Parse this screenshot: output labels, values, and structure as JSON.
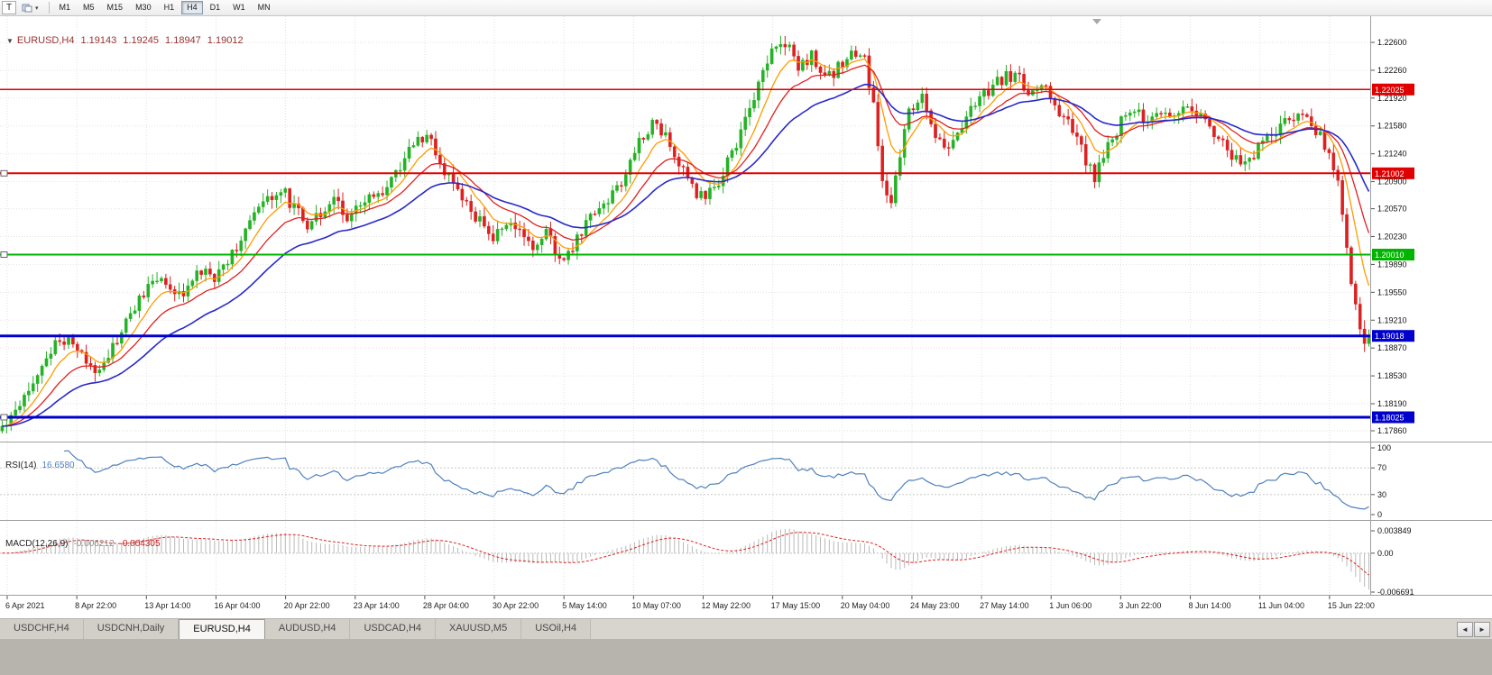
{
  "icons": {
    "caret_down": "▾",
    "legend_marker": "▼"
  },
  "toolbar": {
    "t_button_label": "T",
    "timeframes": [
      "M1",
      "M5",
      "M15",
      "M30",
      "H1",
      "H4",
      "D1",
      "W1",
      "MN"
    ],
    "active_timeframe": "H4"
  },
  "chart_header": {
    "symbol": "EURUSD,H4",
    "open": "1.19143",
    "high": "1.19245",
    "low": "1.18947",
    "close": "1.19012"
  },
  "rsi_panel": {
    "label": "RSI(14)",
    "value": "16.6580"
  },
  "macd_panel": {
    "label": "MACD(12,26,9)",
    "value_main": "-0.006212",
    "value_signal": "-0.004305"
  },
  "tabbar": {
    "tabs": [
      "USDCHF,H4",
      "USDCNH,Daily",
      "EURUSD,H4",
      "AUDUSD,H4",
      "USDCAD,H4",
      "XAUUSD,M5",
      "USOil,H4"
    ],
    "active": "EURUSD,H4",
    "scroll_left": "◄",
    "scroll_right": "►"
  },
  "chart_data": {
    "type": "candlestick",
    "symbol": "EURUSD",
    "timeframe": "H4",
    "last_ohlc": {
      "open": 1.19143,
      "high": 1.19245,
      "low": 1.18947,
      "close": 1.19012
    },
    "axis_range": [
      1.1771,
      1.2289
    ],
    "price_ticks": [
      "1.22600",
      "1.22260",
      "1.21920",
      "1.21580",
      "1.21240",
      "1.20900",
      "1.20570",
      "1.20230",
      "1.19890",
      "1.19550",
      "1.19210",
      "1.18870",
      "1.18530",
      "1.18190",
      "1.17860"
    ],
    "time_labels": [
      "6 Apr 2021",
      "8 Apr 22:00",
      "13 Apr 14:00",
      "16 Apr 04:00",
      "20 Apr 22:00",
      "23 Apr 14:00",
      "28 Apr 04:00",
      "30 Apr 22:00",
      "5 May 14:00",
      "10 May 07:00",
      "12 May 22:00",
      "17 May 15:00",
      "20 May 04:00",
      "24 May 23:00",
      "27 May 14:00",
      "1 Jun 06:00",
      "3 Jun 22:00",
      "8 Jun 14:00",
      "11 Jun 04:00",
      "15 Jun 22:00"
    ],
    "hlines": [
      {
        "value": 1.22025,
        "label": "1.22025",
        "color": "#e00000",
        "width": 1.5,
        "marker": false
      },
      {
        "value": 1.21002,
        "label": "1.21002",
        "color": "#e00000",
        "width": 2,
        "marker": true
      },
      {
        "value": 1.2001,
        "label": "1.20010",
        "color": "#00b400",
        "width": 2,
        "marker": true
      },
      {
        "value": 1.19018,
        "label": "1.19018",
        "color": "#0000cd",
        "width": 3,
        "marker": false
      },
      {
        "value": 1.18025,
        "label": "1.18025",
        "color": "#0000cd",
        "width": 3,
        "marker": true
      }
    ],
    "moving_averages": [
      {
        "name": "fast",
        "period": 8,
        "color": "#ff9c00",
        "width": 1.3
      },
      {
        "name": "medium",
        "period": 17,
        "color": "#e02020",
        "width": 1.3
      },
      {
        "name": "slow",
        "period": 34,
        "color": "#2929c8",
        "width": 1.6
      }
    ],
    "rsi": {
      "period": 14,
      "last_value": 16.658,
      "levels": [
        70,
        30
      ],
      "range": [
        0,
        100
      ],
      "color": "#4f81bd",
      "ticks": [
        {
          "label": "100",
          "value": 100
        },
        {
          "label": "70",
          "value": 70
        },
        {
          "label": "30",
          "value": 30
        },
        {
          "label": "0",
          "value": 0
        }
      ]
    },
    "macd": {
      "fast": 12,
      "slow": 26,
      "signal_period": 9,
      "last_main": -0.006212,
      "last_signal": -0.004305,
      "hist_color": "#b9b9b9",
      "signal_color": "#dd2222",
      "ticks": [
        {
          "label": "0.003849",
          "value": 0.003849
        },
        {
          "label": "0.00",
          "value": 0
        },
        {
          "label": "-0.006691",
          "value": -0.006691
        }
      ]
    },
    "colors": {
      "up": "#26b226",
      "down": "#dd2020",
      "background": "#ffffff",
      "grid": "#e2e2e2"
    },
    "candles_count": 310,
    "last_close": 1.19012,
    "price_anchors": [
      [
        0,
        1.179
      ],
      [
        4,
        1.1822
      ],
      [
        8,
        1.1858
      ],
      [
        12,
        1.1889
      ],
      [
        15,
        1.1902
      ],
      [
        18,
        1.1875
      ],
      [
        21,
        1.1862
      ],
      [
        24,
        1.1878
      ],
      [
        27,
        1.1905
      ],
      [
        30,
        1.1938
      ],
      [
        33,
        1.1962
      ],
      [
        36,
        1.1975
      ],
      [
        39,
        1.1948
      ],
      [
        42,
        1.1962
      ],
      [
        45,
        1.198
      ],
      [
        48,
        1.1972
      ],
      [
        51,
        1.1995
      ],
      [
        54,
        1.2022
      ],
      [
        57,
        1.2048
      ],
      [
        60,
        1.2068
      ],
      [
        63,
        1.2082
      ],
      [
        66,
        1.2058
      ],
      [
        69,
        1.2038
      ],
      [
        72,
        1.2055
      ],
      [
        75,
        1.2068
      ],
      [
        78,
        1.2048
      ],
      [
        81,
        1.2058
      ],
      [
        84,
        1.2072
      ],
      [
        87,
        1.2082
      ],
      [
        90,
        1.2108
      ],
      [
        93,
        1.2135
      ],
      [
        96,
        1.2148
      ],
      [
        99,
        1.2112
      ],
      [
        102,
        1.2085
      ],
      [
        105,
        1.2062
      ],
      [
        108,
        1.204
      ],
      [
        111,
        1.2022
      ],
      [
        114,
        1.2038
      ],
      [
        117,
        1.2028
      ],
      [
        120,
        1.2008
      ],
      [
        123,
        1.2028
      ],
      [
        126,
        1.1995
      ],
      [
        129,
        1.2008
      ],
      [
        132,
        1.204
      ],
      [
        135,
        1.2058
      ],
      [
        138,
        1.2075
      ],
      [
        141,
        1.2098
      ],
      [
        144,
        1.2142
      ],
      [
        147,
        1.2162
      ],
      [
        150,
        1.2148
      ],
      [
        153,
        1.2112
      ],
      [
        156,
        1.2082
      ],
      [
        159,
        1.2068
      ],
      [
        162,
        1.2088
      ],
      [
        165,
        1.2125
      ],
      [
        168,
        1.2162
      ],
      [
        171,
        1.221
      ],
      [
        174,
        1.2252
      ],
      [
        177,
        1.2262
      ],
      [
        180,
        1.2228
      ],
      [
        183,
        1.2245
      ],
      [
        186,
        1.2212
      ],
      [
        189,
        1.2228
      ],
      [
        192,
        1.2248
      ],
      [
        195,
        1.2238
      ],
      [
        197,
        1.218
      ],
      [
        199,
        1.2098
      ],
      [
        201,
        1.2062
      ],
      [
        203,
        1.212
      ],
      [
        205,
        1.2178
      ],
      [
        208,
        1.2192
      ],
      [
        211,
        1.215
      ],
      [
        214,
        1.2128
      ],
      [
        217,
        1.2162
      ],
      [
        220,
        1.2188
      ],
      [
        223,
        1.2202
      ],
      [
        226,
        1.2215
      ],
      [
        229,
        1.2222
      ],
      [
        232,
        1.2198
      ],
      [
        235,
        1.2212
      ],
      [
        238,
        1.2185
      ],
      [
        241,
        1.2162
      ],
      [
        244,
        1.2128
      ],
      [
        247,
        1.2095
      ],
      [
        250,
        1.213
      ],
      [
        253,
        1.2162
      ],
      [
        256,
        1.2178
      ],
      [
        259,
        1.2158
      ],
      [
        262,
        1.2178
      ],
      [
        265,
        1.2168
      ],
      [
        268,
        1.2188
      ],
      [
        271,
        1.2172
      ],
      [
        274,
        1.2152
      ],
      [
        277,
        1.2128
      ],
      [
        280,
        1.2108
      ],
      [
        283,
        1.2125
      ],
      [
        286,
        1.2145
      ],
      [
        289,
        1.2158
      ],
      [
        292,
        1.2168
      ],
      [
        295,
        1.2162
      ],
      [
        298,
        1.2148
      ],
      [
        300,
        1.2122
      ],
      [
        302,
        1.2088
      ],
      [
        303,
        1.2052
      ],
      [
        304,
        1.2008
      ],
      [
        305,
        1.1968
      ],
      [
        306,
        1.1938
      ],
      [
        307,
        1.1912
      ],
      [
        308,
        1.1895
      ],
      [
        309,
        1.19012
      ]
    ]
  }
}
